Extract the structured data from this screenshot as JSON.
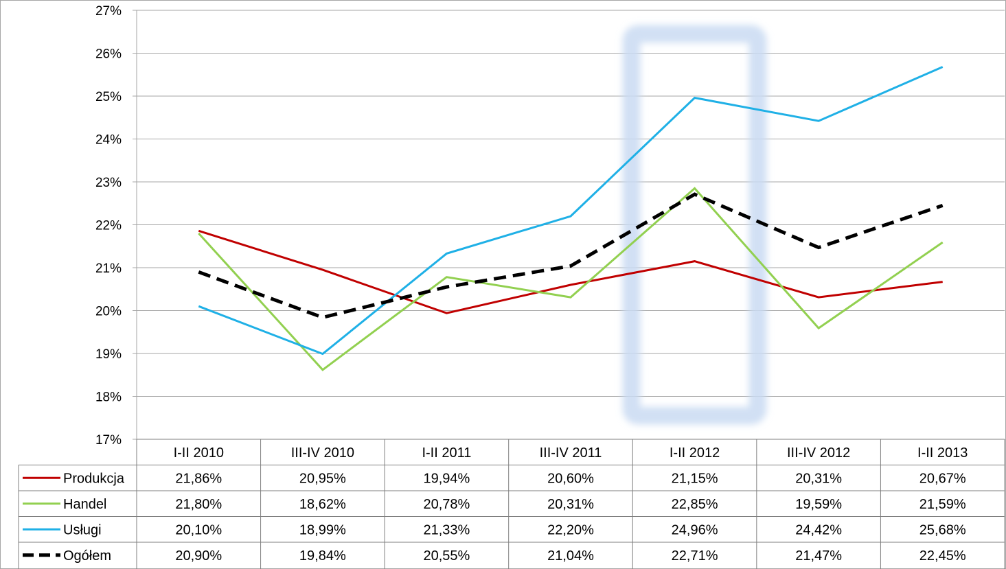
{
  "chart_data": {
    "type": "line",
    "categories": [
      "I-II 2010",
      "III-IV 2010",
      "I-II 2011",
      "III-IV 2011",
      "I-II 2012",
      "III-IV 2012",
      "I-II 2013"
    ],
    "ylim": [
      17,
      27
    ],
    "yticks": [
      "17%",
      "18%",
      "19%",
      "20%",
      "21%",
      "22%",
      "23%",
      "24%",
      "25%",
      "26%",
      "27%"
    ],
    "grid": true,
    "legend": "data-table-below",
    "highlight_category": "I-II 2012",
    "series": [
      {
        "name": "Produkcja",
        "color": "#c00000",
        "style": "solid",
        "values": [
          21.86,
          20.95,
          19.94,
          20.6,
          21.15,
          20.31,
          20.67
        ],
        "labels": [
          "21,86%",
          "20,95%",
          "19,94%",
          "20,60%",
          "21,15%",
          "20,31%",
          "20,67%"
        ]
      },
      {
        "name": "Handel",
        "color": "#92d050",
        "style": "solid",
        "values": [
          21.8,
          18.62,
          20.78,
          20.31,
          22.85,
          19.59,
          21.59
        ],
        "labels": [
          "21,80%",
          "18,62%",
          "20,78%",
          "20,31%",
          "22,85%",
          "19,59%",
          "21,59%"
        ]
      },
      {
        "name": "Usługi",
        "color": "#1fb0e6",
        "style": "solid",
        "values": [
          20.1,
          18.99,
          21.33,
          22.2,
          24.96,
          24.42,
          25.68
        ],
        "labels": [
          "20,10%",
          "18,99%",
          "21,33%",
          "22,20%",
          "24,96%",
          "24,42%",
          "25,68%"
        ]
      },
      {
        "name": "Ogółem",
        "color": "#000000",
        "style": "dashed",
        "values": [
          20.9,
          19.84,
          20.55,
          21.04,
          22.71,
          21.47,
          22.45
        ],
        "labels": [
          "20,90%",
          "19,84%",
          "20,55%",
          "21,04%",
          "22,71%",
          "21,47%",
          "22,45%"
        ]
      }
    ]
  }
}
